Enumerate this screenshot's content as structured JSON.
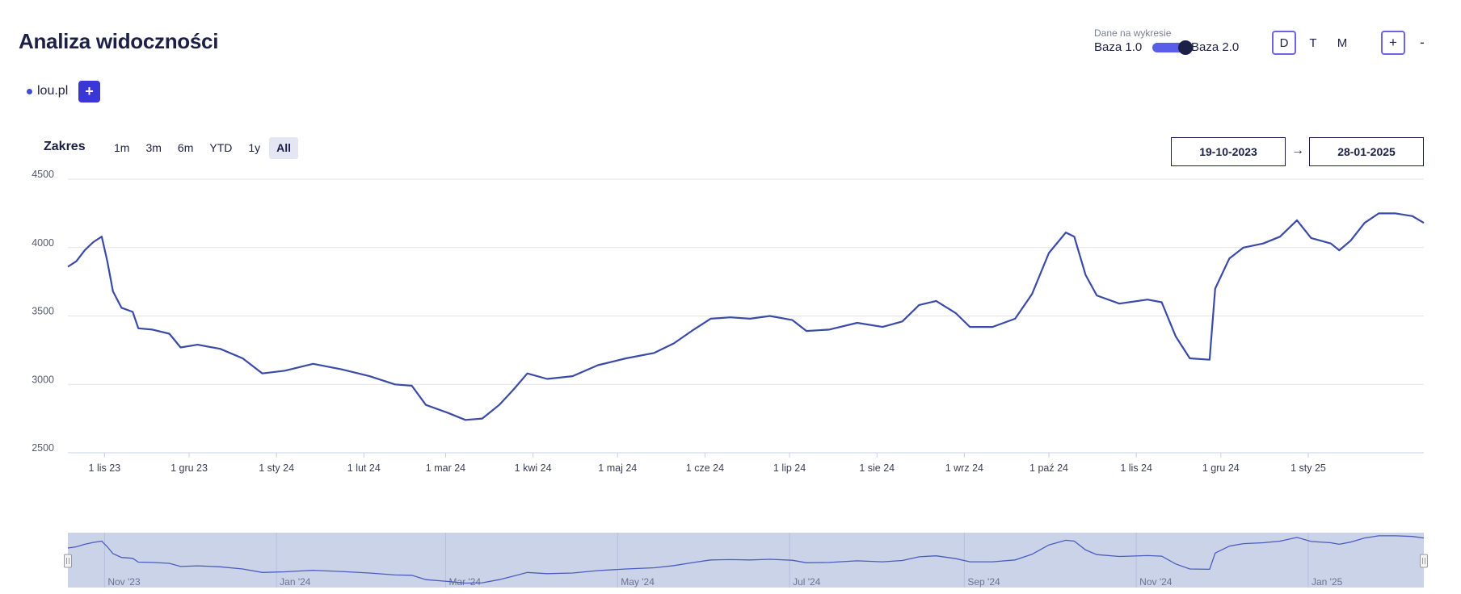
{
  "header": {
    "title": "Analiza widoczności",
    "data_toggle": {
      "caption": "Dane na wykresie",
      "left_label": "Baza 1.0",
      "right_label": "Baza 2.0",
      "selected": "Baza 2.0"
    },
    "interval_buttons": [
      {
        "label": "D",
        "active": true
      },
      {
        "label": "T",
        "active": false
      },
      {
        "label": "M",
        "active": false
      }
    ],
    "zoom_in_label": "+",
    "zoom_out_label": "-"
  },
  "domains": {
    "items": [
      {
        "label": "lou.pl",
        "color": "#3f4bd6"
      }
    ],
    "add_label": "+"
  },
  "range": {
    "label": "Zakres",
    "buttons": [
      {
        "label": "1m",
        "active": false
      },
      {
        "label": "3m",
        "active": false
      },
      {
        "label": "6m",
        "active": false
      },
      {
        "label": "YTD",
        "active": false
      },
      {
        "label": "1y",
        "active": false
      },
      {
        "label": "All",
        "active": true
      }
    ],
    "from": "19-10-2023",
    "arrow": "→",
    "to": "28-01-2025"
  },
  "colors": {
    "line": "#3a4aa8",
    "accent": "#5a5de8",
    "navigator_fill": "#cbd3e8",
    "grid": "#e3e3e3"
  },
  "chart_data": {
    "type": "line",
    "ylim": [
      2500,
      4500
    ],
    "y_ticks": [
      2500,
      3000,
      3500,
      4000,
      4500
    ],
    "x_ticks": [
      {
        "date": "2023-11-01",
        "label": "1 lis 23"
      },
      {
        "date": "2023-12-01",
        "label": "1 gru 23"
      },
      {
        "date": "2024-01-01",
        "label": "1 sty 24"
      },
      {
        "date": "2024-02-01",
        "label": "1 lut 24"
      },
      {
        "date": "2024-03-01",
        "label": "1 mar 24"
      },
      {
        "date": "2024-04-01",
        "label": "1 kwi 24"
      },
      {
        "date": "2024-05-01",
        "label": "1 maj 24"
      },
      {
        "date": "2024-06-01",
        "label": "1 cze 24"
      },
      {
        "date": "2024-07-01",
        "label": "1 lip 24"
      },
      {
        "date": "2024-08-01",
        "label": "1 sie 24"
      },
      {
        "date": "2024-09-01",
        "label": "1 wrz 24"
      },
      {
        "date": "2024-10-01",
        "label": "1 paź 24"
      },
      {
        "date": "2024-11-01",
        "label": "1 lis 24"
      },
      {
        "date": "2024-12-01",
        "label": "1 gru 24"
      },
      {
        "date": "2025-01-01",
        "label": "1 sty 25"
      }
    ],
    "grid": true,
    "series": [
      {
        "color": "#3a4aa8",
        "points": [
          [
            "2023-10-19",
            3860
          ],
          [
            "2023-10-22",
            3900
          ],
          [
            "2023-10-25",
            3980
          ],
          [
            "2023-10-28",
            4040
          ],
          [
            "2023-10-31",
            4080
          ],
          [
            "2023-11-02",
            3900
          ],
          [
            "2023-11-04",
            3680
          ],
          [
            "2023-11-07",
            3560
          ],
          [
            "2023-11-11",
            3530
          ],
          [
            "2023-11-13",
            3410
          ],
          [
            "2023-11-18",
            3400
          ],
          [
            "2023-11-24",
            3370
          ],
          [
            "2023-11-28",
            3270
          ],
          [
            "2023-12-04",
            3290
          ],
          [
            "2023-12-12",
            3260
          ],
          [
            "2023-12-20",
            3190
          ],
          [
            "2023-12-27",
            3080
          ],
          [
            "2024-01-04",
            3100
          ],
          [
            "2024-01-14",
            3150
          ],
          [
            "2024-01-24",
            3110
          ],
          [
            "2024-02-03",
            3060
          ],
          [
            "2024-02-12",
            3000
          ],
          [
            "2024-02-18",
            2990
          ],
          [
            "2024-02-23",
            2850
          ],
          [
            "2024-03-02",
            2790
          ],
          [
            "2024-03-08",
            2740
          ],
          [
            "2024-03-14",
            2750
          ],
          [
            "2024-03-20",
            2850
          ],
          [
            "2024-03-25",
            2960
          ],
          [
            "2024-03-30",
            3080
          ],
          [
            "2024-04-06",
            3040
          ],
          [
            "2024-04-15",
            3060
          ],
          [
            "2024-04-24",
            3140
          ],
          [
            "2024-05-04",
            3190
          ],
          [
            "2024-05-14",
            3230
          ],
          [
            "2024-05-21",
            3300
          ],
          [
            "2024-05-28",
            3400
          ],
          [
            "2024-06-03",
            3480
          ],
          [
            "2024-06-10",
            3490
          ],
          [
            "2024-06-17",
            3480
          ],
          [
            "2024-06-24",
            3500
          ],
          [
            "2024-07-02",
            3470
          ],
          [
            "2024-07-07",
            3390
          ],
          [
            "2024-07-15",
            3400
          ],
          [
            "2024-07-25",
            3450
          ],
          [
            "2024-08-03",
            3420
          ],
          [
            "2024-08-10",
            3460
          ],
          [
            "2024-08-16",
            3580
          ],
          [
            "2024-08-22",
            3610
          ],
          [
            "2024-08-29",
            3520
          ],
          [
            "2024-09-03",
            3420
          ],
          [
            "2024-09-11",
            3420
          ],
          [
            "2024-09-19",
            3480
          ],
          [
            "2024-09-25",
            3660
          ],
          [
            "2024-10-01",
            3960
          ],
          [
            "2024-10-07",
            4110
          ],
          [
            "2024-10-10",
            4080
          ],
          [
            "2024-10-14",
            3800
          ],
          [
            "2024-10-18",
            3650
          ],
          [
            "2024-10-26",
            3590
          ],
          [
            "2024-11-05",
            3620
          ],
          [
            "2024-11-10",
            3600
          ],
          [
            "2024-11-15",
            3350
          ],
          [
            "2024-11-20",
            3190
          ],
          [
            "2024-11-27",
            3180
          ],
          [
            "2024-11-29",
            3700
          ],
          [
            "2024-12-04",
            3920
          ],
          [
            "2024-12-09",
            4000
          ],
          [
            "2024-12-16",
            4030
          ],
          [
            "2024-12-22",
            4080
          ],
          [
            "2024-12-28",
            4200
          ],
          [
            "2025-01-02",
            4070
          ],
          [
            "2025-01-09",
            4030
          ],
          [
            "2025-01-12",
            3980
          ],
          [
            "2025-01-16",
            4050
          ],
          [
            "2025-01-21",
            4180
          ],
          [
            "2025-01-26",
            4250
          ],
          [
            "2025-02-01",
            4250
          ],
          [
            "2025-02-07",
            4230
          ],
          [
            "2025-02-11",
            4180
          ]
        ]
      }
    ],
    "navigator": {
      "labels": [
        {
          "date": "2023-11-01",
          "label": "Nov '23"
        },
        {
          "date": "2024-01-01",
          "label": "Jan '24"
        },
        {
          "date": "2024-03-01",
          "label": "Mar '24"
        },
        {
          "date": "2024-05-01",
          "label": "May '24"
        },
        {
          "date": "2024-07-01",
          "label": "Jul '24"
        },
        {
          "date": "2024-09-01",
          "label": "Sep '24"
        },
        {
          "date": "2024-11-01",
          "label": "Nov '24"
        },
        {
          "date": "2025-01-01",
          "label": "Jan '25"
        }
      ]
    }
  }
}
